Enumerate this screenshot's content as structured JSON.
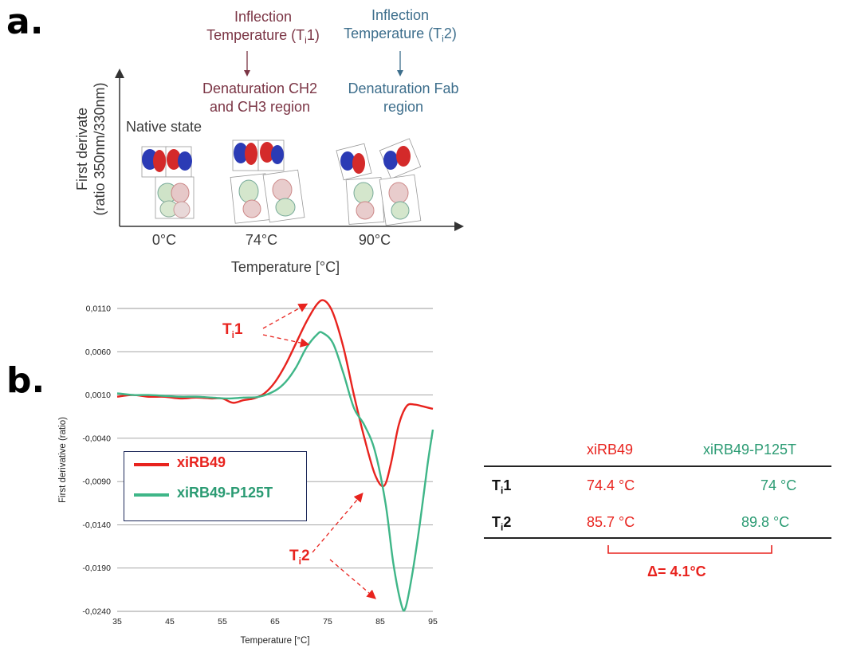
{
  "panel_a": {
    "letter": "a.",
    "ti1_line1": "Inflection",
    "ti1_line2_prefix": "Temperature (T",
    "ti1_sub": "i",
    "ti1_line2_suffix": "1)",
    "ti2_line1": "Inflection",
    "ti2_line2_prefix": "Temperature (T",
    "ti2_sub": "i",
    "ti2_line2_suffix": "2)",
    "denat_ch_line1": "Denaturation CH2",
    "denat_ch_line2": "and CH3 region",
    "denat_fab_line1": "Denaturation Fab",
    "denat_fab_line2": "region",
    "native_state": "Native state",
    "y_axis_line1": "First derivate",
    "y_axis_line2": "(ratio 350nm/330nm)",
    "x_axis": "Temperature [°C]",
    "temps": [
      "0°C",
      "74°C",
      "90°C"
    ],
    "icons": [
      "antibody-native-icon",
      "antibody-partial-unfolded-icon",
      "antibody-fab-unfolded-icon"
    ]
  },
  "panel_b": {
    "letter": "b."
  },
  "chart_data": {
    "type": "line",
    "title": "",
    "xlabel": "Temperature  [°C]",
    "ylabel": "First derivative (ratio)",
    "xlim": [
      35,
      95
    ],
    "ylim": [
      -0.024,
      0.011
    ],
    "x_ticks": [
      "35",
      "45",
      "55",
      "65",
      "75",
      "85",
      "95"
    ],
    "y_ticks": [
      "0,0110",
      "0,0060",
      "0,0010",
      "-0,0040",
      "-0,0090",
      "-0,0140",
      "-0,0190",
      "-0,0240"
    ],
    "grid": "horizontal",
    "legend_position": "middle-left",
    "series": [
      {
        "name": "xiRB49",
        "color": "#e8231e",
        "x": [
          35,
          38,
          41,
          44,
          47,
          50,
          53,
          55,
          57,
          59,
          61,
          63,
          65,
          67,
          69,
          71,
          73,
          74.4,
          76,
          78,
          80,
          82,
          84,
          85.7,
          87,
          88.5,
          90,
          91.5,
          93,
          95
        ],
        "y": [
          0.0008,
          0.001,
          0.0008,
          0.0008,
          0.0006,
          0.0007,
          0.0006,
          0.0006,
          0.0001,
          0.0004,
          0.0006,
          0.0012,
          0.0025,
          0.0045,
          0.007,
          0.0095,
          0.0115,
          0.0119,
          0.0105,
          0.0065,
          0.001,
          -0.004,
          -0.0082,
          -0.0095,
          -0.007,
          -0.0025,
          -0.0003,
          -0.0001,
          -0.0003,
          -0.0006
        ]
      },
      {
        "name": "xiRB49-P125T",
        "color": "#3fb688",
        "x": [
          35,
          38,
          41,
          44,
          47,
          50,
          53,
          56,
          59,
          62,
          65,
          67,
          69,
          71,
          73,
          74,
          76,
          78,
          80,
          82,
          84,
          86,
          87.5,
          89,
          89.8,
          91,
          92.5,
          94,
          95
        ],
        "y": [
          0.0012,
          0.001,
          0.001,
          0.0009,
          0.0008,
          0.0008,
          0.0007,
          0.0006,
          0.0007,
          0.0008,
          0.0015,
          0.0025,
          0.0042,
          0.0065,
          0.008,
          0.0082,
          0.007,
          0.0035,
          -0.0005,
          -0.0025,
          -0.0055,
          -0.0115,
          -0.0185,
          -0.0232,
          -0.0236,
          -0.02,
          -0.014,
          -0.007,
          -0.003
        ]
      }
    ],
    "annotations": [
      {
        "label_main": "T",
        "label_sub": "i",
        "label_suffix": "1"
      },
      {
        "label_main": "T",
        "label_sub": "i",
        "label_suffix": "2"
      }
    ]
  },
  "table": {
    "col_headers": [
      "xiRB49",
      "xiRB49-P125T"
    ],
    "rows": [
      {
        "main": "T",
        "sub": "i",
        "suffix": "1",
        "v1": "74.4 °C",
        "v2": "74 °C"
      },
      {
        "main": "T",
        "sub": "i",
        "suffix": "2",
        "v1": "85.7 °C",
        "v2": "89.8 °C"
      }
    ],
    "delta": "Δ= 4.1°C"
  },
  "colors": {
    "red": "#e8231e",
    "green": "#3fb688",
    "green_text": "#2b9b73",
    "maroon": "#7b3545",
    "steel": "#3d6e8c",
    "legend_border": "#1e2a5a"
  }
}
